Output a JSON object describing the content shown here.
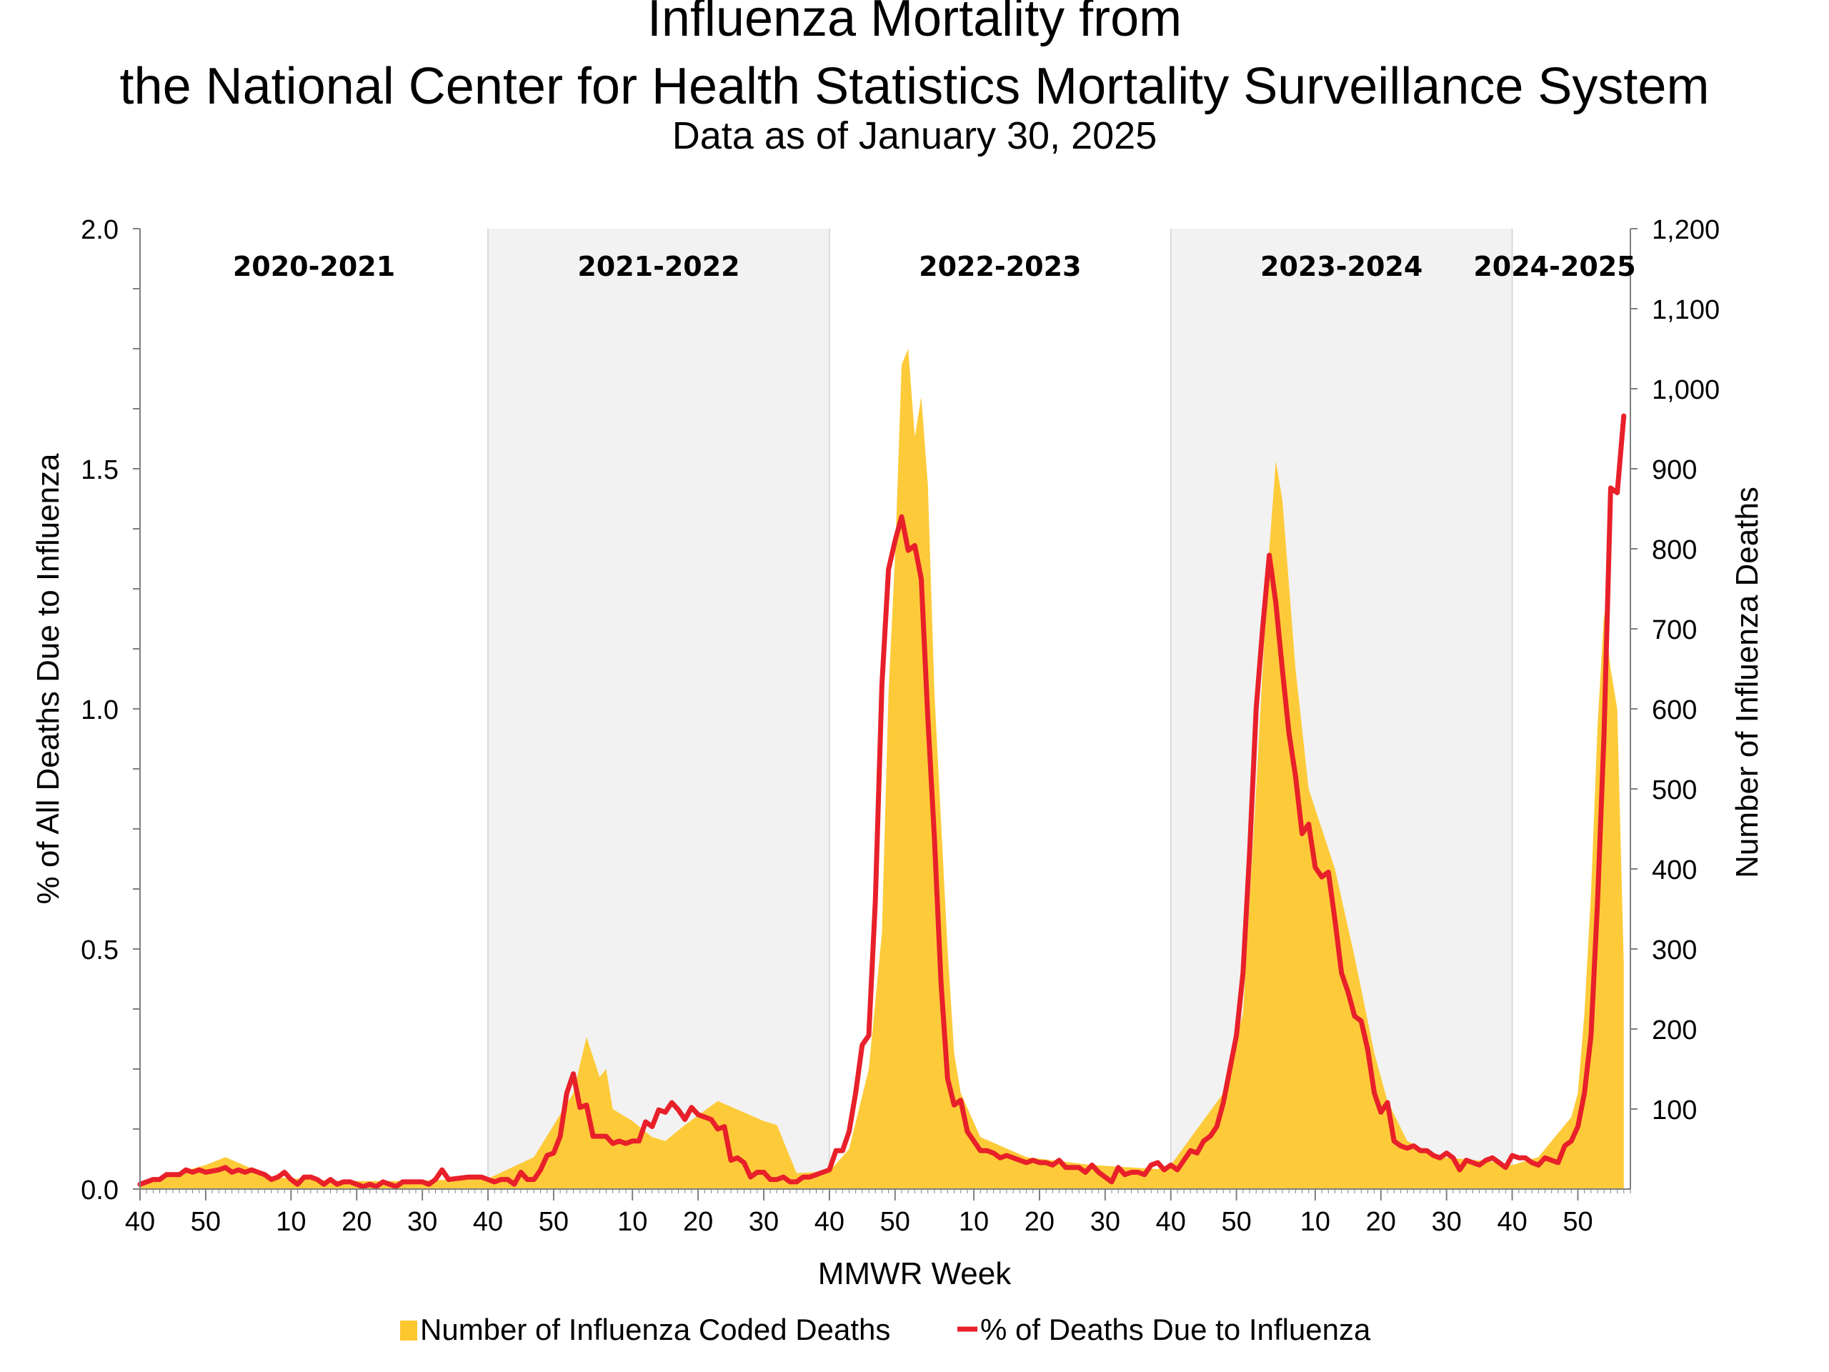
{
  "chart_data": {
    "type": "area+line",
    "title_line1": "Influenza Mortality from",
    "title_line2": "the National Center for Health Statistics Mortality Surveillance System",
    "subtitle": "Data as of January 30, 2025",
    "xlabel": "MMWR Week",
    "ylabel_left": "% of All Deaths Due to Influenza",
    "ylabel_right": "Number of Influenza Deaths",
    "ylim_left": [
      0,
      2.0
    ],
    "ylim_right": [
      0,
      1200
    ],
    "left_ticks": [
      "0.0",
      "0.5",
      "1.0",
      "1.5",
      "2.0"
    ],
    "left_tick_values": [
      0,
      0.5,
      1.0,
      1.5,
      2.0
    ],
    "right_ticks": [
      "100",
      "200",
      "300",
      "400",
      "500",
      "600",
      "700",
      "800",
      "900",
      "1,000",
      "1,100",
      "1,200"
    ],
    "right_tick_values": [
      100,
      200,
      300,
      400,
      500,
      600,
      700,
      800,
      900,
      1000,
      1100,
      1200
    ],
    "x_tick_labels": [
      "40",
      "50",
      "10",
      "20",
      "30",
      "40",
      "50",
      "10",
      "20",
      "30",
      "40",
      "50",
      "10",
      "20",
      "30",
      "40",
      "50",
      "10",
      "20",
      "30",
      "40",
      "50"
    ],
    "x_tick_index": [
      0,
      10,
      23,
      33,
      43,
      53,
      63,
      75,
      85,
      95,
      105,
      115,
      127,
      137,
      147,
      157,
      167,
      179,
      189,
      199,
      209,
      219
    ],
    "seasons": [
      {
        "label": "2020-2021",
        "start": 0,
        "end": 53,
        "shaded": false
      },
      {
        "label": "2021-2022",
        "start": 53,
        "end": 105,
        "shaded": true
      },
      {
        "label": "2022-2023",
        "start": 105,
        "end": 157,
        "shaded": false
      },
      {
        "label": "2023-2024",
        "start": 157,
        "end": 209,
        "shaded": true
      },
      {
        "label": "2024-2025",
        "start": 209,
        "end": 227,
        "shaded": false
      }
    ],
    "legend_placement": "bottom-center",
    "series": [
      {
        "name": "Number of Influenza Coded Deaths",
        "kind": "area",
        "axis": "right",
        "color": "#FDC82F",
        "points": [
          [
            0,
            8
          ],
          [
            10,
            30
          ],
          [
            13,
            40
          ],
          [
            20,
            15
          ],
          [
            30,
            10
          ],
          [
            40,
            10
          ],
          [
            53,
            13
          ],
          [
            60,
            40
          ],
          [
            66,
            120
          ],
          [
            68,
            190
          ],
          [
            70,
            140
          ],
          [
            71,
            150
          ],
          [
            72,
            100
          ],
          [
            75,
            85
          ],
          [
            78,
            65
          ],
          [
            80,
            60
          ],
          [
            83,
            80
          ],
          [
            88,
            110
          ],
          [
            95,
            85
          ],
          [
            97,
            80
          ],
          [
            100,
            20
          ],
          [
            105,
            22
          ],
          [
            108,
            50
          ],
          [
            111,
            150
          ],
          [
            113,
            320
          ],
          [
            114,
            620
          ],
          [
            115,
            790
          ],
          [
            116,
            1030
          ],
          [
            117,
            1050
          ],
          [
            118,
            940
          ],
          [
            119,
            990
          ],
          [
            120,
            880
          ],
          [
            121,
            620
          ],
          [
            123,
            300
          ],
          [
            124,
            170
          ],
          [
            125,
            120
          ],
          [
            128,
            65
          ],
          [
            135,
            40
          ],
          [
            145,
            30
          ],
          [
            155,
            25
          ],
          [
            157,
            30
          ],
          [
            165,
            120
          ],
          [
            168,
            220
          ],
          [
            170,
            500
          ],
          [
            172,
            800
          ],
          [
            173,
            910
          ],
          [
            174,
            860
          ],
          [
            176,
            650
          ],
          [
            178,
            500
          ],
          [
            182,
            400
          ],
          [
            185,
            290
          ],
          [
            188,
            170
          ],
          [
            190,
            110
          ],
          [
            193,
            60
          ],
          [
            198,
            40
          ],
          [
            205,
            35
          ],
          [
            209,
            30
          ],
          [
            213,
            40
          ],
          [
            216,
            70
          ],
          [
            218,
            90
          ],
          [
            219,
            120
          ],
          [
            220,
            220
          ],
          [
            221,
            370
          ],
          [
            222,
            580
          ],
          [
            223,
            720
          ],
          [
            224,
            650
          ],
          [
            225,
            600
          ],
          [
            226,
            280
          ]
        ]
      },
      {
        "name": "% of Deaths Due to Influenza",
        "kind": "line",
        "axis": "left",
        "color": "#E8202A",
        "points": [
          [
            0,
            0.01
          ],
          [
            2,
            0.02
          ],
          [
            3,
            0.02
          ],
          [
            4,
            0.03
          ],
          [
            6,
            0.03
          ],
          [
            7,
            0.04
          ],
          [
            8,
            0.035
          ],
          [
            9,
            0.04
          ],
          [
            10,
            0.035
          ],
          [
            12,
            0.04
          ],
          [
            13,
            0.045
          ],
          [
            14,
            0.035
          ],
          [
            15,
            0.04
          ],
          [
            16,
            0.035
          ],
          [
            17,
            0.04
          ],
          [
            18,
            0.035
          ],
          [
            19,
            0.03
          ],
          [
            20,
            0.02
          ],
          [
            21,
            0.025
          ],
          [
            22,
            0.035
          ],
          [
            23,
            0.02
          ],
          [
            24,
            0.01
          ],
          [
            25,
            0.025
          ],
          [
            26,
            0.025
          ],
          [
            27,
            0.02
          ],
          [
            28,
            0.01
          ],
          [
            29,
            0.02
          ],
          [
            30,
            0.01
          ],
          [
            31,
            0.015
          ],
          [
            32,
            0.015
          ],
          [
            33,
            0.01
          ],
          [
            34,
            0.005
          ],
          [
            35,
            0.01
          ],
          [
            36,
            0.005
          ],
          [
            37,
            0.015
          ],
          [
            38,
            0.01
          ],
          [
            39,
            0.005
          ],
          [
            40,
            0.015
          ],
          [
            41,
            0.015
          ],
          [
            43,
            0.015
          ],
          [
            44,
            0.01
          ],
          [
            45,
            0.02
          ],
          [
            46,
            0.04
          ],
          [
            47,
            0.02
          ],
          [
            50,
            0.025
          ],
          [
            52,
            0.025
          ],
          [
            53,
            0.02
          ],
          [
            54,
            0.015
          ],
          [
            55,
            0.02
          ],
          [
            56,
            0.02
          ],
          [
            57,
            0.01
          ],
          [
            58,
            0.035
          ],
          [
            59,
            0.02
          ],
          [
            60,
            0.02
          ],
          [
            61,
            0.04
          ],
          [
            62,
            0.07
          ],
          [
            63,
            0.075
          ],
          [
            64,
            0.11
          ],
          [
            65,
            0.2
          ],
          [
            66,
            0.24
          ],
          [
            67,
            0.17
          ],
          [
            68,
            0.175
          ],
          [
            69,
            0.11
          ],
          [
            70,
            0.11
          ],
          [
            71,
            0.11
          ],
          [
            72,
            0.095
          ],
          [
            73,
            0.1
          ],
          [
            74,
            0.095
          ],
          [
            75,
            0.1
          ],
          [
            76,
            0.1
          ],
          [
            77,
            0.14
          ],
          [
            78,
            0.13
          ],
          [
            79,
            0.165
          ],
          [
            80,
            0.16
          ],
          [
            81,
            0.18
          ],
          [
            82,
            0.165
          ],
          [
            83,
            0.145
          ],
          [
            84,
            0.17
          ],
          [
            85,
            0.155
          ],
          [
            86,
            0.15
          ],
          [
            87,
            0.145
          ],
          [
            88,
            0.125
          ],
          [
            89,
            0.13
          ],
          [
            90,
            0.06
          ],
          [
            91,
            0.065
          ],
          [
            92,
            0.055
          ],
          [
            93,
            0.025
          ],
          [
            94,
            0.035
          ],
          [
            95,
            0.035
          ],
          [
            96,
            0.02
          ],
          [
            97,
            0.02
          ],
          [
            98,
            0.025
          ],
          [
            99,
            0.015
          ],
          [
            100,
            0.015
          ],
          [
            101,
            0.025
          ],
          [
            102,
            0.025
          ],
          [
            103,
            0.03
          ],
          [
            104,
            0.035
          ],
          [
            105,
            0.04
          ],
          [
            106,
            0.08
          ],
          [
            107,
            0.08
          ],
          [
            108,
            0.12
          ],
          [
            109,
            0.2
          ],
          [
            110,
            0.3
          ],
          [
            111,
            0.32
          ],
          [
            112,
            0.6
          ],
          [
            113,
            1.05
          ],
          [
            114,
            1.29
          ],
          [
            115,
            1.35
          ],
          [
            116,
            1.4
          ],
          [
            117,
            1.33
          ],
          [
            118,
            1.34
          ],
          [
            119,
            1.27
          ],
          [
            120,
            0.98
          ],
          [
            121,
            0.73
          ],
          [
            122,
            0.43
          ],
          [
            123,
            0.23
          ],
          [
            124,
            0.175
          ],
          [
            125,
            0.185
          ],
          [
            126,
            0.12
          ],
          [
            127,
            0.1
          ],
          [
            128,
            0.08
          ],
          [
            129,
            0.08
          ],
          [
            130,
            0.075
          ],
          [
            131,
            0.065
          ],
          [
            132,
            0.07
          ],
          [
            133,
            0.065
          ],
          [
            134,
            0.06
          ],
          [
            135,
            0.055
          ],
          [
            136,
            0.06
          ],
          [
            137,
            0.055
          ],
          [
            138,
            0.055
          ],
          [
            139,
            0.05
          ],
          [
            140,
            0.06
          ],
          [
            141,
            0.045
          ],
          [
            142,
            0.045
          ],
          [
            143,
            0.045
          ],
          [
            144,
            0.035
          ],
          [
            145,
            0.05
          ],
          [
            146,
            0.035
          ],
          [
            147,
            0.025
          ],
          [
            148,
            0.015
          ],
          [
            149,
            0.045
          ],
          [
            150,
            0.03
          ],
          [
            151,
            0.035
          ],
          [
            152,
            0.035
          ],
          [
            153,
            0.03
          ],
          [
            154,
            0.05
          ],
          [
            155,
            0.055
          ],
          [
            156,
            0.04
          ],
          [
            157,
            0.05
          ],
          [
            158,
            0.04
          ],
          [
            159,
            0.06
          ],
          [
            160,
            0.08
          ],
          [
            161,
            0.075
          ],
          [
            162,
            0.1
          ],
          [
            163,
            0.11
          ],
          [
            164,
            0.13
          ],
          [
            165,
            0.18
          ],
          [
            166,
            0.25
          ],
          [
            167,
            0.32
          ],
          [
            168,
            0.45
          ],
          [
            169,
            0.7
          ],
          [
            170,
            1.0
          ],
          [
            171,
            1.17
          ],
          [
            172,
            1.32
          ],
          [
            173,
            1.22
          ],
          [
            174,
            1.08
          ],
          [
            175,
            0.95
          ],
          [
            176,
            0.86
          ],
          [
            177,
            0.74
          ],
          [
            178,
            0.76
          ],
          [
            179,
            0.67
          ],
          [
            180,
            0.65
          ],
          [
            181,
            0.66
          ],
          [
            182,
            0.56
          ],
          [
            183,
            0.45
          ],
          [
            184,
            0.41
          ],
          [
            185,
            0.36
          ],
          [
            186,
            0.35
          ],
          [
            187,
            0.29
          ],
          [
            188,
            0.2
          ],
          [
            189,
            0.16
          ],
          [
            190,
            0.18
          ],
          [
            191,
            0.1
          ],
          [
            192,
            0.09
          ],
          [
            193,
            0.085
          ],
          [
            194,
            0.09
          ],
          [
            195,
            0.08
          ],
          [
            196,
            0.08
          ],
          [
            197,
            0.07
          ],
          [
            198,
            0.065
          ],
          [
            199,
            0.075
          ],
          [
            200,
            0.065
          ],
          [
            201,
            0.04
          ],
          [
            202,
            0.06
          ],
          [
            203,
            0.055
          ],
          [
            204,
            0.05
          ],
          [
            205,
            0.06
          ],
          [
            206,
            0.065
          ],
          [
            207,
            0.055
          ],
          [
            208,
            0.045
          ],
          [
            209,
            0.07
          ],
          [
            210,
            0.065
          ],
          [
            211,
            0.065
          ],
          [
            212,
            0.055
          ],
          [
            213,
            0.05
          ],
          [
            214,
            0.065
          ],
          [
            215,
            0.06
          ],
          [
            216,
            0.055
          ],
          [
            217,
            0.09
          ],
          [
            218,
            0.1
          ],
          [
            219,
            0.13
          ],
          [
            220,
            0.2
          ],
          [
            221,
            0.32
          ],
          [
            222,
            0.6
          ],
          [
            223,
            0.95
          ],
          [
            224,
            1.46
          ],
          [
            225,
            1.45
          ],
          [
            226,
            1.61
          ]
        ]
      }
    ]
  }
}
